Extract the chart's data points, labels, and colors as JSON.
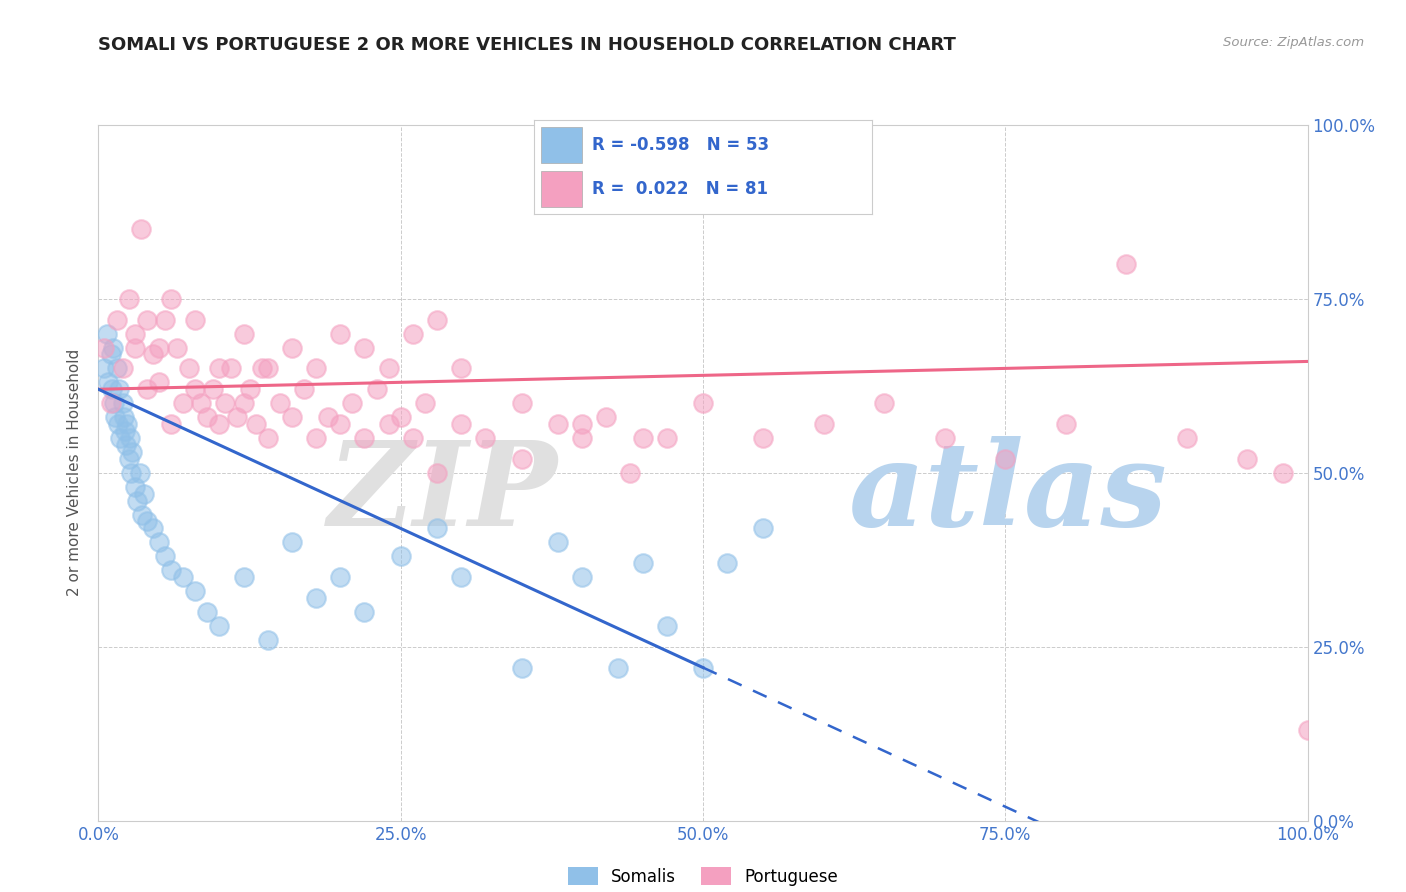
{
  "title": "SOMALI VS PORTUGUESE 2 OR MORE VEHICLES IN HOUSEHOLD CORRELATION CHART",
  "source": "Source: ZipAtlas.com",
  "ylabel": "2 or more Vehicles in Household",
  "xlim": [
    0,
    100
  ],
  "ylim": [
    0,
    100
  ],
  "xticks": [
    0,
    25,
    50,
    75,
    100
  ],
  "yticks": [
    0,
    25,
    50,
    75,
    100
  ],
  "xticklabels": [
    "0.0%",
    "25.0%",
    "50.0%",
    "75.0%",
    "100.0%"
  ],
  "yticklabels": [
    "0.0%",
    "25.0%",
    "50.0%",
    "75.0%",
    "100.0%"
  ],
  "somali_color": "#90C0E8",
  "portuguese_color": "#F4A0C0",
  "somali_line_color": "#3366CC",
  "portuguese_line_color": "#EE6688",
  "legend_R_somali": "-0.598",
  "legend_N_somali": "53",
  "legend_R_portuguese": "0.022",
  "legend_N_portuguese": "81",
  "background_color": "#ffffff",
  "somali_x": [
    0.5,
    0.7,
    0.8,
    1.0,
    1.1,
    1.2,
    1.3,
    1.4,
    1.5,
    1.6,
    1.7,
    1.8,
    2.0,
    2.1,
    2.2,
    2.3,
    2.4,
    2.5,
    2.6,
    2.7,
    2.8,
    3.0,
    3.2,
    3.4,
    3.6,
    3.8,
    4.0,
    4.5,
    5.0,
    5.5,
    6.0,
    7.0,
    8.0,
    9.0,
    10.0,
    12.0,
    14.0,
    16.0,
    18.0,
    20.0,
    22.0,
    25.0,
    28.0,
    30.0,
    35.0,
    38.0,
    40.0,
    43.0,
    45.0,
    47.0,
    50.0,
    52.0,
    55.0
  ],
  "somali_y": [
    65.0,
    70.0,
    63.0,
    67.0,
    62.0,
    68.0,
    60.0,
    58.0,
    65.0,
    57.0,
    62.0,
    55.0,
    60.0,
    58.0,
    56.0,
    54.0,
    57.0,
    52.0,
    55.0,
    50.0,
    53.0,
    48.0,
    46.0,
    50.0,
    44.0,
    47.0,
    43.0,
    42.0,
    40.0,
    38.0,
    36.0,
    35.0,
    33.0,
    30.0,
    28.0,
    35.0,
    26.0,
    40.0,
    32.0,
    35.0,
    30.0,
    38.0,
    42.0,
    35.0,
    22.0,
    40.0,
    35.0,
    22.0,
    37.0,
    28.0,
    22.0,
    37.0,
    42.0
  ],
  "portuguese_x": [
    0.5,
    1.0,
    1.5,
    2.0,
    2.5,
    3.0,
    3.5,
    4.0,
    4.5,
    5.0,
    5.5,
    6.0,
    6.5,
    7.0,
    7.5,
    8.0,
    8.5,
    9.0,
    9.5,
    10.0,
    10.5,
    11.0,
    11.5,
    12.0,
    12.5,
    13.0,
    13.5,
    14.0,
    15.0,
    16.0,
    17.0,
    18.0,
    19.0,
    20.0,
    21.0,
    22.0,
    23.0,
    24.0,
    25.0,
    26.0,
    27.0,
    28.0,
    30.0,
    32.0,
    35.0,
    38.0,
    40.0,
    42.0,
    44.0,
    47.0,
    50.0,
    55.0,
    60.0,
    65.0,
    70.0,
    75.0,
    80.0,
    85.0,
    90.0,
    95.0,
    98.0,
    100.0,
    3.0,
    4.0,
    5.0,
    6.0,
    8.0,
    10.0,
    12.0,
    14.0,
    16.0,
    18.0,
    20.0,
    22.0,
    24.0,
    26.0,
    28.0,
    30.0,
    35.0,
    40.0,
    45.0
  ],
  "portuguese_y": [
    68.0,
    60.0,
    72.0,
    65.0,
    75.0,
    68.0,
    85.0,
    62.0,
    67.0,
    63.0,
    72.0,
    57.0,
    68.0,
    60.0,
    65.0,
    62.0,
    60.0,
    58.0,
    62.0,
    57.0,
    60.0,
    65.0,
    58.0,
    60.0,
    62.0,
    57.0,
    65.0,
    55.0,
    60.0,
    58.0,
    62.0,
    55.0,
    58.0,
    57.0,
    60.0,
    55.0,
    62.0,
    57.0,
    58.0,
    55.0,
    60.0,
    50.0,
    57.0,
    55.0,
    52.0,
    57.0,
    55.0,
    58.0,
    50.0,
    55.0,
    60.0,
    55.0,
    57.0,
    60.0,
    55.0,
    52.0,
    57.0,
    80.0,
    55.0,
    52.0,
    50.0,
    13.0,
    70.0,
    72.0,
    68.0,
    75.0,
    72.0,
    65.0,
    70.0,
    65.0,
    68.0,
    65.0,
    70.0,
    68.0,
    65.0,
    70.0,
    72.0,
    65.0,
    60.0,
    57.0,
    55.0
  ],
  "somali_line_x0": 0,
  "somali_line_y0": 62,
  "somali_line_x1": 50,
  "somali_line_y1": 22,
  "somali_dash_x0": 50,
  "somali_dash_x1": 100,
  "portuguese_line_x0": 0,
  "portuguese_line_y0": 62,
  "portuguese_line_x1": 100,
  "portuguese_line_y1": 66
}
